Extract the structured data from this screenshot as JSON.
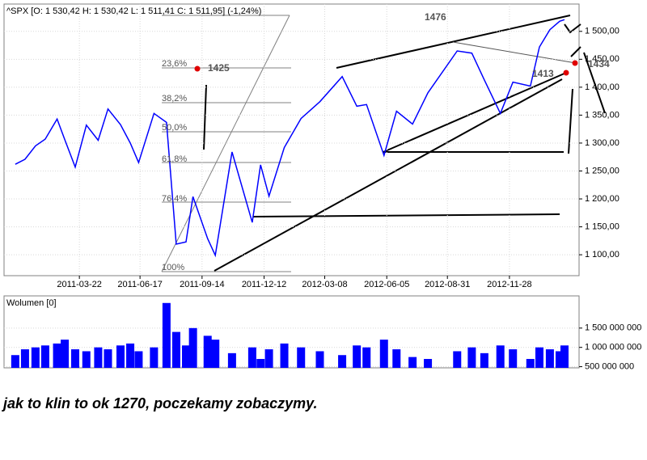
{
  "chart_data": [
    {
      "type": "line",
      "title": "^SPX [O: 1 530,42  H: 1 530,42  L: 1 511,41  C: 1 511,95] (-1,24%)",
      "series": [
        {
          "name": "^SPX",
          "color": "#0000ff",
          "values": [
            1262,
            1271,
            1295,
            1307,
            1343,
            1306,
            1257,
            1332,
            1305,
            1361,
            1333,
            1300,
            1265,
            1353,
            1337,
            1119,
            1123,
            1204,
            1129,
            1099,
            1284,
            1158,
            1261,
            1205,
            1292,
            1344,
            1374,
            1419,
            1366,
            1369,
            1278,
            1357,
            1334,
            1390,
            1465,
            1461,
            1413,
            1353,
            1409,
            1402,
            1472,
            1503,
            1518,
            1521
          ]
        }
      ],
      "x": [
        "2010-12-20",
        "2011-01-03",
        "2011-01-18",
        "2011-02-01",
        "2011-02-18",
        "2011-03-01",
        "2011-03-16",
        "2011-04-01",
        "2011-04-18",
        "2011-05-02",
        "2011-05-20",
        "2011-06-03",
        "2011-06-15",
        "2011-07-07",
        "2011-07-25",
        "2011-08-08",
        "2011-08-22",
        "2011-09-01",
        "2011-09-22",
        "2011-10-03",
        "2011-10-27",
        "2011-11-25",
        "2011-12-07",
        "2011-12-19",
        "2012-01-10",
        "2012-02-03",
        "2012-03-01",
        "2012-04-02",
        "2012-04-23",
        "2012-05-07",
        "2012-06-01",
        "2012-06-19",
        "2012-07-12",
        "2012-08-03",
        "2012-09-14",
        "2012-10-05",
        "2012-10-23",
        "2012-11-15",
        "2012-12-03",
        "2012-12-28",
        "2013-01-10",
        "2013-01-25",
        "2013-02-08",
        "2013-02-15"
      ],
      "xlim": [
        "2010-12-19",
        "2013-02-15"
      ],
      "xticks": [
        "2011-03-22",
        "2011-06-17",
        "2011-09-14",
        "2011-12-12",
        "2012-03-08",
        "2012-06-05",
        "2012-08-31",
        "2012-11-28"
      ],
      "ylim": [
        1064,
        1546
      ],
      "yticks": [
        {
          "value": 1100,
          "label": "1 100,00"
        },
        {
          "value": 1150,
          "label": "1 150,00"
        },
        {
          "value": 1200,
          "label": "1 200,00"
        },
        {
          "value": 1250,
          "label": "1 250,00"
        },
        {
          "value": 1300,
          "label": "1 300,00"
        },
        {
          "value": 1350,
          "label": "1 350,00"
        },
        {
          "value": 1400,
          "label": "1 400,00"
        },
        {
          "value": 1450,
          "label": "1 450,00"
        },
        {
          "value": 1500,
          "label": "1 500,00"
        }
      ],
      "grid": true,
      "annotations": [
        "1476",
        "1425",
        "1413",
        "1434",
        "23,6%",
        "38,2%",
        "50,0%",
        "61,8%",
        "76,4%",
        "100%"
      ]
    },
    {
      "type": "bar",
      "title": "Wolumen [0]",
      "color": "#0000ff",
      "x": [
        "2010-12-20",
        "2011-01-03",
        "2011-01-18",
        "2011-02-01",
        "2011-02-18",
        "2011-03-01",
        "2011-03-16",
        "2011-04-01",
        "2011-04-18",
        "2011-05-02",
        "2011-05-20",
        "2011-06-03",
        "2011-06-15",
        "2011-07-07",
        "2011-07-25",
        "2011-08-08",
        "2011-08-22",
        "2011-09-01",
        "2011-09-22",
        "2011-10-03",
        "2011-10-27",
        "2011-11-25",
        "2011-12-07",
        "2011-12-19",
        "2012-01-10",
        "2012-02-03",
        "2012-03-01",
        "2012-04-02",
        "2012-04-23",
        "2012-05-07",
        "2012-06-01",
        "2012-06-19",
        "2012-07-12",
        "2012-08-03",
        "2012-09-14",
        "2012-10-05",
        "2012-10-23",
        "2012-11-15",
        "2012-12-03",
        "2012-12-28",
        "2013-01-10",
        "2013-01-25",
        "2013-02-08",
        "2013-02-15"
      ],
      "values": [
        800000000,
        950000000,
        1000000000,
        1050000000,
        1100000000,
        1200000000,
        950000000,
        900000000,
        1000000000,
        950000000,
        1050000000,
        1100000000,
        900000000,
        1000000000,
        2150000000,
        1400000000,
        1050000000,
        1500000000,
        1300000000,
        1200000000,
        850000000,
        1000000000,
        700000000,
        950000000,
        1100000000,
        1000000000,
        900000000,
        800000000,
        1050000000,
        1000000000,
        1200000000,
        950000000,
        750000000,
        700000000,
        900000000,
        1000000000,
        850000000,
        1050000000,
        950000000,
        700000000,
        1000000000,
        950000000,
        900000000,
        1050000000
      ],
      "xlim": [
        "2010-12-19",
        "2013-02-15"
      ],
      "ylim": [
        470000000,
        2250000000
      ],
      "yticks": [
        {
          "value": 500000000,
          "label": "500 000 000"
        },
        {
          "value": 1000000000,
          "label": "1 000 000 000"
        },
        {
          "value": 1500000000,
          "label": "1 500 000 000"
        }
      ],
      "grid": true
    },
    {
      "type": "caption",
      "text": "jak to klin to ok 1270, poczekamy zobaczymy."
    }
  ]
}
